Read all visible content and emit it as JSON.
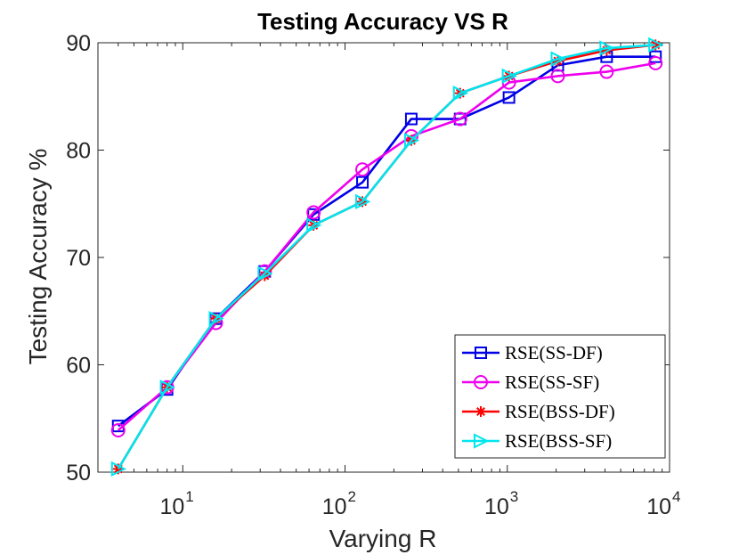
{
  "chart_data": {
    "type": "line",
    "title": "Testing Accuracy VS R",
    "xlabel": "Varying R",
    "ylabel": "Testing Accuracy %",
    "xscale": "log",
    "xlim": [
      3,
      10000
    ],
    "ylim": [
      50,
      90
    ],
    "yticks": [
      50,
      60,
      70,
      80,
      90
    ],
    "xticks": [
      {
        "value": 10,
        "base": "10",
        "exp": "1"
      },
      {
        "value": 100,
        "base": "10",
        "exp": "2"
      },
      {
        "value": 1000,
        "base": "10",
        "exp": "3"
      },
      {
        "value": 10000,
        "base": "10",
        "exp": "4"
      }
    ],
    "x": [
      4,
      8,
      16,
      32,
      64,
      128,
      256,
      512,
      1024,
      2048,
      4096,
      8192
    ],
    "legend_position": "bottom-right",
    "series": [
      {
        "name": "RSE(SS-DF)",
        "color": "#0000e6",
        "marker": "square",
        "values": [
          54.3,
          57.7,
          64.3,
          68.7,
          74.0,
          77.0,
          82.9,
          82.9,
          84.9,
          87.9,
          88.7,
          88.7
        ]
      },
      {
        "name": "RSE(SS-SF)",
        "color": "#ee00ee",
        "marker": "circle",
        "values": [
          53.9,
          57.9,
          63.9,
          68.7,
          74.2,
          78.2,
          81.3,
          82.9,
          86.3,
          86.9,
          87.3,
          88.1
        ]
      },
      {
        "name": "RSE(BSS-DF)",
        "color": "#ff0000",
        "marker": "asterisk",
        "values": [
          50.3,
          57.9,
          64.3,
          68.3,
          73.0,
          75.2,
          80.9,
          85.3,
          86.9,
          88.3,
          89.3,
          89.8
        ]
      },
      {
        "name": "RSE(BSS-SF)",
        "color": "#00e5ee",
        "marker": "triangle-right",
        "values": [
          50.3,
          57.9,
          64.3,
          68.5,
          73.0,
          75.2,
          80.9,
          85.3,
          86.9,
          88.5,
          89.5,
          89.8
        ]
      }
    ]
  }
}
